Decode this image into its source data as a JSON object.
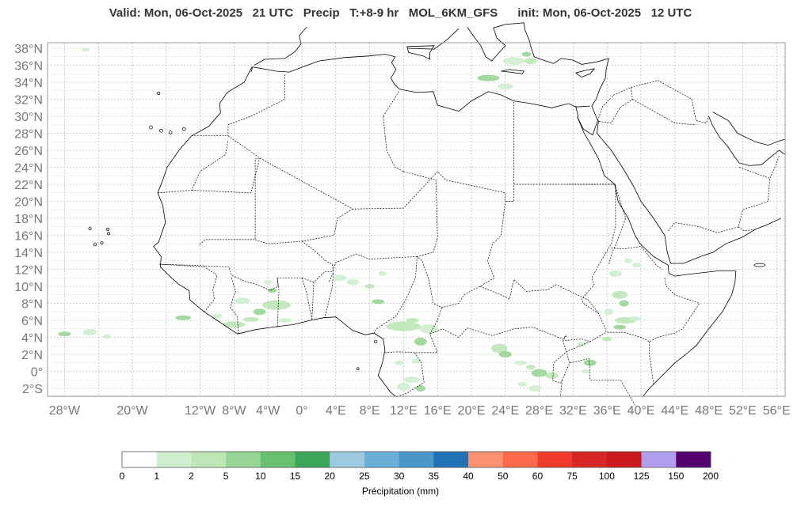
{
  "title": "Valid: Mon, 06-Oct-2025   21 UTC   Precip   T:+8-9 hr   MOL_6KM_GFS      init: Mon, 06-Oct-2025   12 UTC",
  "map": {
    "lon_range": [
      -30,
      57
    ],
    "lat_range": [
      -3,
      38.5
    ],
    "lat_labels": [
      "38°N",
      "36°N",
      "34°N",
      "32°N",
      "30°N",
      "28°N",
      "26°N",
      "24°N",
      "22°N",
      "20°N",
      "18°N",
      "16°N",
      "14°N",
      "12°N",
      "10°N",
      "8°N",
      "6°N",
      "4°N",
      "2°N",
      "0°",
      "2°S"
    ],
    "lat_values": [
      38,
      36,
      34,
      32,
      30,
      28,
      26,
      24,
      22,
      20,
      18,
      16,
      14,
      12,
      10,
      8,
      6,
      4,
      2,
      0,
      -2
    ],
    "lon_labels": [
      "28°W",
      "20°W",
      "12°W",
      "8°W",
      "4°W",
      "0°",
      "4°E",
      "8°E",
      "12°E",
      "16°E",
      "20°E",
      "24°E",
      "28°E",
      "32°E",
      "36°E",
      "40°E",
      "44°E",
      "48°E",
      "52°E",
      "56°E"
    ],
    "lon_values": [
      -28,
      -20,
      -12,
      -8,
      -4,
      0,
      4,
      8,
      12,
      16,
      20,
      24,
      28,
      32,
      36,
      40,
      44,
      48,
      52,
      56
    ],
    "grid": true,
    "land_color": "#ffffff",
    "coast_color": "#000000",
    "grid_color": "#aaaaaa"
  },
  "colorbar": {
    "label": "Précipitation (mm)",
    "ticks": [
      "0",
      "1",
      "2",
      "5",
      "10",
      "15",
      "20",
      "25",
      "30",
      "35",
      "40",
      "50",
      "60",
      "75",
      "100",
      "125",
      "150",
      "200"
    ],
    "colors": [
      "#ffffff",
      "#cfeecf",
      "#bde5b6",
      "#97d594",
      "#69c070",
      "#3ca65a",
      "#9ecae1",
      "#6baed6",
      "#4a98c9",
      "#2171b5",
      "#fc9272",
      "#fb6a4a",
      "#ef3b2c",
      "#d62626",
      "#cb181d",
      "#b09ef0",
      "#54006f"
    ]
  },
  "precip": {
    "color_light": "#cfeecf",
    "color_mid": "#bde5b6",
    "color_strong": "#97d594"
  }
}
